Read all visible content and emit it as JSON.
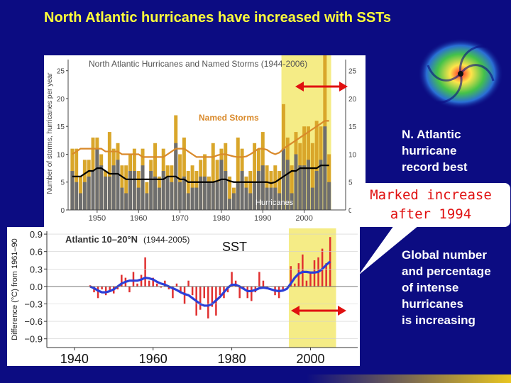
{
  "slide": {
    "title": "North Atlantic hurricanes have increased with SSTs",
    "note_record": [
      "N. Atlantic",
      "hurricane",
      "record best"
    ],
    "callout": [
      "Marked increase",
      "after 1994"
    ],
    "note_global": [
      "Global number",
      "and percentage",
      "of intense",
      "hurricanes",
      "is increasing"
    ]
  },
  "chart_data": [
    {
      "type": "bar",
      "title": "North Atlantic Hurricanes and Named Storms (1944-2006)",
      "ylabel": "Number of storms, hurricanes per year",
      "ylim": [
        0,
        27
      ],
      "xlim": [
        1943,
        2010
      ],
      "x_ticks": [
        1950,
        1960,
        1970,
        1980,
        1990,
        2000
      ],
      "y_ticks": [
        0,
        5,
        10,
        15,
        20,
        25
      ],
      "labels": {
        "named": "Named Storms",
        "hurricanes": "Hurricanes"
      },
      "highlight": [
        1995,
        2006
      ],
      "years": [
        1944,
        1945,
        1946,
        1947,
        1948,
        1949,
        1950,
        1951,
        1952,
        1953,
        1954,
        1955,
        1956,
        1957,
        1958,
        1959,
        1960,
        1961,
        1962,
        1963,
        1964,
        1965,
        1966,
        1967,
        1968,
        1969,
        1970,
        1971,
        1972,
        1973,
        1974,
        1975,
        1976,
        1977,
        1978,
        1979,
        1980,
        1981,
        1982,
        1983,
        1984,
        1985,
        1986,
        1987,
        1988,
        1989,
        1990,
        1991,
        1992,
        1993,
        1994,
        1995,
        1996,
        1997,
        1998,
        1999,
        2000,
        2001,
        2002,
        2003,
        2004,
        2005,
        2006
      ],
      "series": [
        {
          "name": "Named Storms",
          "color": "#d9a62a",
          "values": [
            11,
            11,
            6,
            9,
            9,
            13,
            13,
            10,
            7,
            14,
            11,
            12,
            8,
            8,
            10,
            11,
            7,
            11,
            5,
            9,
            12,
            6,
            11,
            8,
            8,
            17,
            10,
            13,
            7,
            8,
            7,
            9,
            10,
            6,
            12,
            9,
            11,
            12,
            6,
            4,
            13,
            11,
            6,
            7,
            12,
            11,
            14,
            8,
            7,
            8,
            7,
            19,
            13,
            8,
            14,
            12,
            15,
            15,
            12,
            16,
            15,
            28,
            10
          ]
        },
        {
          "name": "Hurricanes",
          "color": "#6e6e6e",
          "values": [
            7,
            5,
            3,
            5,
            6,
            7,
            11,
            8,
            6,
            6,
            8,
            9,
            4,
            3,
            7,
            7,
            4,
            8,
            3,
            7,
            6,
            4,
            7,
            6,
            5,
            12,
            5,
            6,
            3,
            4,
            4,
            6,
            6,
            5,
            5,
            5,
            9,
            7,
            2,
            3,
            5,
            7,
            4,
            3,
            5,
            7,
            8,
            4,
            4,
            4,
            3,
            11,
            9,
            3,
            10,
            8,
            8,
            9,
            4,
            7,
            9,
            15,
            5
          ]
        },
        {
          "name": "Named Storms (smoothed)",
          "color": "#d9892a",
          "values": [
            10,
            10.5,
            11,
            11,
            11,
            11,
            11,
            11,
            10.5,
            10.5,
            10.5,
            10.5,
            10,
            10,
            10,
            10,
            10,
            9.5,
            9.5,
            9.5,
            9.5,
            9.5,
            9.5,
            10,
            10.5,
            11,
            11,
            11,
            10.5,
            10,
            9.5,
            9.5,
            9.5,
            9.5,
            9.5,
            9.8,
            10,
            10,
            9.8,
            9.6,
            9.5,
            9.5,
            9.6,
            10,
            10.5,
            11,
            11,
            10.8,
            10.3,
            10,
            10.3,
            11,
            11.5,
            12,
            12.5,
            13,
            13.5,
            14,
            14.5,
            15,
            15.5,
            16,
            16
          ]
        },
        {
          "name": "Hurricanes (smoothed)",
          "color": "#000000",
          "values": [
            6,
            6,
            6,
            6.5,
            7,
            7,
            7.5,
            7.5,
            7,
            6.5,
            6.5,
            6.5,
            6,
            5.5,
            5.5,
            5.5,
            5.5,
            5.5,
            5.5,
            5.5,
            5.5,
            5.5,
            5.5,
            6,
            6,
            6,
            5.5,
            5.5,
            5,
            5,
            5,
            5,
            5,
            5,
            5,
            5.2,
            5.5,
            5.5,
            5.2,
            5,
            5,
            5,
            5,
            5,
            5,
            5,
            5,
            5,
            4.8,
            5,
            5.5,
            6,
            6.5,
            7,
            7,
            7.5,
            7.5,
            7.5,
            7.5,
            7.5,
            8,
            8,
            8
          ]
        }
      ]
    },
    {
      "type": "bar",
      "title": "Atlantic 10–20°N",
      "subtitle": "(1944-2005)",
      "annotation": "SST",
      "ylabel": "Difference (°C) from 1961–90",
      "ylim": [
        -1.05,
        0.95
      ],
      "xlim": [
        1933,
        2012
      ],
      "x_ticks": [
        1940,
        1960,
        1980,
        2000
      ],
      "y_ticks": [
        -0.9,
        -0.6,
        -0.3,
        0.0,
        0.3,
        0.6,
        0.9
      ],
      "y_tick_labels": [
        "−0.9",
        "−0.6",
        "−0.3",
        "0.0",
        "0.3",
        "0.6",
        "0.9"
      ],
      "highlight": [
        1995,
        2006
      ],
      "years": [
        1944,
        1945,
        1946,
        1947,
        1948,
        1949,
        1950,
        1951,
        1952,
        1953,
        1954,
        1955,
        1956,
        1957,
        1958,
        1959,
        1960,
        1961,
        1962,
        1963,
        1964,
        1965,
        1966,
        1967,
        1968,
        1969,
        1970,
        1971,
        1972,
        1973,
        1974,
        1975,
        1976,
        1977,
        1978,
        1979,
        1980,
        1981,
        1982,
        1983,
        1984,
        1985,
        1986,
        1987,
        1988,
        1989,
        1990,
        1991,
        1992,
        1993,
        1994,
        1995,
        1996,
        1997,
        1998,
        1999,
        2000,
        2001,
        2002,
        2003,
        2004,
        2005
      ],
      "series": [
        {
          "name": "Annual SST anomaly",
          "color": "#e03030",
          "values": [
            0.02,
            -0.1,
            -0.2,
            -0.05,
            -0.15,
            -0.08,
            -0.12,
            -0.05,
            0.2,
            0.15,
            -0.1,
            0.25,
            0.05,
            0.2,
            0.5,
            0.1,
            0.15,
            0.05,
            -0.02,
            0.1,
            -0.05,
            -0.2,
            0.05,
            -0.1,
            -0.3,
            0.1,
            -0.15,
            -0.5,
            -0.4,
            -0.2,
            -0.55,
            -0.35,
            -0.5,
            -0.15,
            -0.2,
            -0.1,
            0.25,
            0.1,
            -0.2,
            -0.05,
            -0.2,
            -0.25,
            -0.1,
            0.25,
            0.1,
            -0.05,
            0.0,
            -0.15,
            -0.2,
            -0.05,
            0.0,
            0.35,
            0.05,
            0.4,
            0.55,
            0.1,
            0.25,
            0.45,
            0.5,
            0.65,
            0.4,
            0.85
          ]
        },
        {
          "name": "Smoothed",
          "color": "#2b3fd8",
          "values": [
            0.0,
            -0.03,
            -0.07,
            -0.1,
            -0.1,
            -0.08,
            -0.05,
            0.0,
            0.05,
            0.08,
            0.1,
            0.1,
            0.1,
            0.12,
            0.15,
            0.14,
            0.12,
            0.08,
            0.05,
            0.03,
            0.0,
            -0.03,
            -0.06,
            -0.1,
            -0.13,
            -0.15,
            -0.2,
            -0.25,
            -0.3,
            -0.33,
            -0.33,
            -0.3,
            -0.24,
            -0.18,
            -0.1,
            -0.02,
            0.03,
            0.03,
            0.0,
            -0.04,
            -0.08,
            -0.08,
            -0.06,
            -0.03,
            -0.02,
            -0.03,
            -0.05,
            -0.07,
            -0.08,
            -0.07,
            -0.04,
            0.05,
            0.15,
            0.22,
            0.25,
            0.25,
            0.24,
            0.24,
            0.25,
            0.3,
            0.37,
            0.43
          ]
        }
      ]
    }
  ],
  "colors": {
    "background": "#0c0c82",
    "title": "#ffff3a",
    "arrow": "#e01010",
    "highlight": "#f5ec86"
  },
  "icons": {
    "satellite": "hurricane-satellite-image"
  }
}
